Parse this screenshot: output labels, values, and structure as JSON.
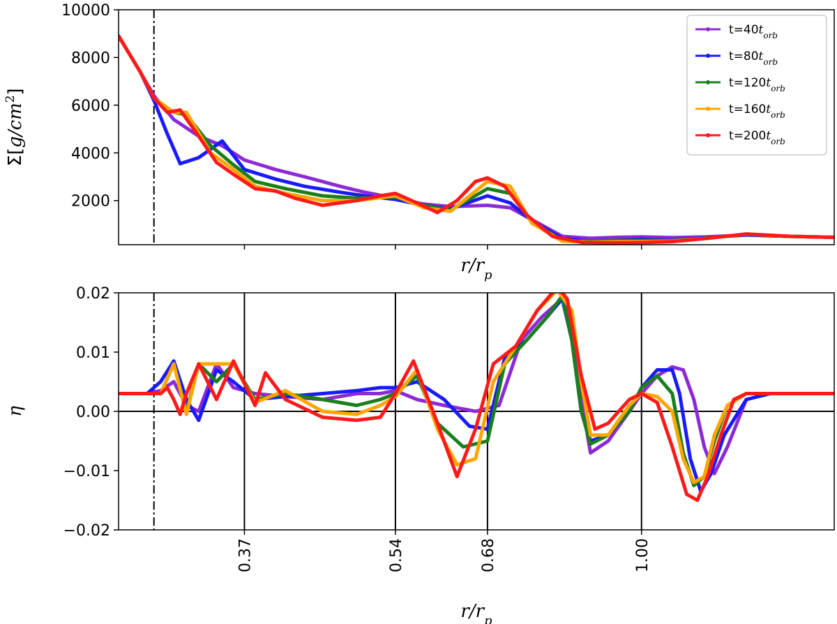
{
  "chart_data": [
    {
      "type": "line",
      "title": "",
      "xlabel": "r/r_p",
      "ylabel": "Σ[g/cm²]",
      "ylabel_parts": {
        "sigma": "Σ[",
        "unit": "g/cm",
        "sup": "2",
        "close": "]"
      },
      "xlabel_parts": {
        "main": "r/r",
        "sub": "p"
      },
      "x_scale": "log",
      "xlim": [
        0.27,
        1.62
      ],
      "ylim": [
        150,
        10000
      ],
      "yticks": [
        2000,
        4000,
        6000,
        8000,
        10000
      ],
      "ytick_labels": [
        "2000",
        "4000",
        "6000",
        "8000",
        "10000"
      ],
      "vertical_marker_dashdot": 0.295,
      "minor_ticks_x": [
        0.37,
        0.54,
        0.68,
        1.0
      ],
      "legend_position": "upper-right",
      "legend_prefix": "t=",
      "legend_unit_main": "t",
      "legend_unit_sub": "orb",
      "series": [
        {
          "name": "t=40t_orb",
          "label_value": "40",
          "color": "#8c2ad6",
          "x": [
            0.27,
            0.285,
            0.295,
            0.31,
            0.33,
            0.35,
            0.37,
            0.4,
            0.43,
            0.47,
            0.5,
            0.54,
            0.58,
            0.62,
            0.68,
            0.72,
            0.76,
            0.82,
            0.88,
            0.94,
            1.0,
            1.08,
            1.18,
            1.3,
            1.45,
            1.62
          ],
          "y": [
            8900,
            7400,
            6400,
            5400,
            4700,
            4300,
            3700,
            3300,
            3000,
            2600,
            2350,
            2100,
            1850,
            1750,
            1800,
            1700,
            1200,
            500,
            420,
            460,
            480,
            450,
            480,
            560,
            500,
            460
          ]
        },
        {
          "name": "t=80t_orb",
          "label_value": "80",
          "color": "#1a1aff",
          "x": [
            0.27,
            0.285,
            0.295,
            0.305,
            0.315,
            0.33,
            0.35,
            0.37,
            0.4,
            0.43,
            0.47,
            0.5,
            0.54,
            0.58,
            0.62,
            0.68,
            0.72,
            0.76,
            0.82,
            0.88,
            0.94,
            1.0,
            1.08,
            1.18,
            1.3,
            1.45,
            1.62
          ],
          "y": [
            8900,
            7400,
            6200,
            4800,
            3550,
            3800,
            4500,
            3300,
            2900,
            2600,
            2350,
            2200,
            2050,
            1800,
            1650,
            2200,
            1900,
            1150,
            420,
            300,
            340,
            380,
            330,
            450,
            560,
            500,
            460
          ]
        },
        {
          "name": "t=120t_orb",
          "label_value": "120",
          "color": "#1a7f1a",
          "x": [
            0.27,
            0.285,
            0.295,
            0.31,
            0.32,
            0.34,
            0.36,
            0.38,
            0.41,
            0.45,
            0.49,
            0.54,
            0.58,
            0.62,
            0.68,
            0.72,
            0.76,
            0.82,
            0.88,
            0.94,
            1.0,
            1.08,
            1.18,
            1.3,
            1.45,
            1.62
          ],
          "y": [
            8900,
            7400,
            6300,
            5700,
            5600,
            4300,
            3500,
            2800,
            2500,
            2200,
            2100,
            2150,
            1800,
            1600,
            2500,
            2300,
            1100,
            330,
            300,
            330,
            330,
            320,
            430,
            580,
            500,
            460
          ]
        },
        {
          "name": "t=160t_orb",
          "label_value": "160",
          "color": "#ffa500",
          "x": [
            0.27,
            0.285,
            0.295,
            0.31,
            0.32,
            0.34,
            0.36,
            0.38,
            0.41,
            0.45,
            0.49,
            0.54,
            0.58,
            0.62,
            0.68,
            0.72,
            0.76,
            0.82,
            0.88,
            0.94,
            1.0,
            1.08,
            1.18,
            1.3,
            1.45,
            1.62
          ],
          "y": [
            8900,
            7400,
            6300,
            5700,
            5700,
            4000,
            3300,
            2600,
            2300,
            2000,
            2000,
            2200,
            1700,
            1550,
            2800,
            2600,
            1050,
            300,
            260,
            280,
            280,
            300,
            420,
            600,
            500,
            460
          ]
        },
        {
          "name": "t=200t_orb",
          "label_value": "200",
          "color": "#ff1a1a",
          "x": [
            0.27,
            0.285,
            0.295,
            0.305,
            0.315,
            0.33,
            0.345,
            0.36,
            0.38,
            0.4,
            0.42,
            0.45,
            0.49,
            0.52,
            0.54,
            0.57,
            0.6,
            0.63,
            0.66,
            0.68,
            0.71,
            0.75,
            0.8,
            0.86,
            0.93,
            1.0,
            1.08,
            1.18,
            1.3,
            1.45,
            1.62
          ],
          "y": [
            8900,
            7400,
            6300,
            5700,
            5800,
            4700,
            3600,
            3100,
            2500,
            2400,
            2100,
            1800,
            2000,
            2200,
            2300,
            1900,
            1500,
            2000,
            2800,
            2950,
            2600,
            1400,
            500,
            250,
            230,
            240,
            280,
            420,
            600,
            500,
            460
          ]
        }
      ]
    },
    {
      "type": "line",
      "title": "",
      "xlabel": "r/r_p",
      "xlabel_parts": {
        "main": "r/r",
        "sub": "p"
      },
      "ylabel": "η",
      "x_scale": "log",
      "xlim": [
        0.27,
        1.62
      ],
      "ylim": [
        -0.02,
        0.02
      ],
      "yticks": [
        -0.02,
        -0.01,
        0.0,
        0.01,
        0.02
      ],
      "ytick_labels": [
        "−0.02",
        "−0.01",
        "0.00",
        "0.01",
        "0.02"
      ],
      "xticks": [
        0.37,
        0.54,
        0.68,
        1.0
      ],
      "xtick_labels": [
        "0.37",
        "0.54",
        "0.68",
        "1.00"
      ],
      "vertical_lines_solid": [
        0.37,
        0.54,
        0.68,
        1.0
      ],
      "vertical_marker_dashdot": 0.295,
      "horizontal_line": 0.0,
      "series": [
        {
          "name": "t=40t_orb",
          "color": "#8c2ad6",
          "x": [
            0.27,
            0.29,
            0.3,
            0.31,
            0.32,
            0.33,
            0.345,
            0.36,
            0.38,
            0.41,
            0.45,
            0.49,
            0.52,
            0.54,
            0.57,
            0.61,
            0.66,
            0.7,
            0.74,
            0.78,
            0.82,
            0.84,
            0.86,
            0.88,
            0.92,
            0.97,
            1.0,
            1.04,
            1.08,
            1.11,
            1.14,
            1.17,
            1.2,
            1.24,
            1.3,
            1.38,
            1.45
          ],
          "y": [
            0.003,
            0.003,
            0.0035,
            0.005,
            0.001,
            0.0,
            0.008,
            0.004,
            0.003,
            0.0025,
            0.002,
            0.003,
            0.003,
            0.0035,
            0.002,
            0.001,
            0.0,
            0.001,
            0.012,
            0.016,
            0.019,
            0.015,
            0.002,
            -0.007,
            -0.005,
            0.0,
            0.003,
            0.006,
            0.0075,
            0.007,
            0.002,
            -0.006,
            -0.0105,
            -0.006,
            0.002,
            0.003,
            0.003
          ]
        },
        {
          "name": "t=80t_orb",
          "color": "#1a1aff",
          "x": [
            0.27,
            0.29,
            0.3,
            0.31,
            0.32,
            0.33,
            0.345,
            0.36,
            0.38,
            0.41,
            0.45,
            0.49,
            0.52,
            0.54,
            0.57,
            0.61,
            0.65,
            0.68,
            0.71,
            0.75,
            0.79,
            0.82,
            0.84,
            0.86,
            0.88,
            0.92,
            0.97,
            1.0,
            1.04,
            1.08,
            1.1,
            1.13,
            1.16,
            1.19,
            1.23,
            1.3,
            1.38,
            1.55
          ],
          "y": [
            0.003,
            0.003,
            0.005,
            0.0085,
            0.002,
            -0.0015,
            0.007,
            0.005,
            0.002,
            0.0025,
            0.003,
            0.0035,
            0.004,
            0.004,
            0.005,
            0.002,
            -0.0025,
            -0.003,
            0.009,
            0.012,
            0.016,
            0.019,
            0.012,
            0.0,
            -0.005,
            -0.004,
            0.0,
            0.004,
            0.007,
            0.007,
            0.003,
            -0.008,
            -0.0135,
            -0.0105,
            -0.004,
            0.002,
            0.003,
            0.003
          ]
        },
        {
          "name": "t=120t_orb",
          "color": "#1a7f1a",
          "x": [
            0.27,
            0.29,
            0.3,
            0.31,
            0.32,
            0.33,
            0.345,
            0.36,
            0.38,
            0.41,
            0.45,
            0.49,
            0.52,
            0.54,
            0.57,
            0.6,
            0.64,
            0.68,
            0.71,
            0.75,
            0.79,
            0.82,
            0.84,
            0.86,
            0.88,
            0.92,
            0.97,
            1.0,
            1.04,
            1.08,
            1.11,
            1.14,
            1.17,
            1.2,
            1.24,
            1.3,
            1.38,
            1.55
          ],
          "y": [
            0.003,
            0.003,
            0.003,
            0.008,
            0.0,
            0.008,
            0.005,
            0.008,
            0.002,
            0.003,
            0.002,
            0.001,
            0.002,
            0.003,
            0.006,
            -0.002,
            -0.006,
            -0.005,
            0.008,
            0.012,
            0.016,
            0.0195,
            0.012,
            0.0,
            -0.0055,
            -0.004,
            0.0,
            0.004,
            0.006,
            0.003,
            -0.007,
            -0.0125,
            -0.011,
            -0.005,
            0.001,
            0.003,
            0.003,
            0.003
          ]
        },
        {
          "name": "t=160t_orb",
          "color": "#ffa500",
          "x": [
            0.27,
            0.29,
            0.3,
            0.31,
            0.32,
            0.33,
            0.345,
            0.36,
            0.38,
            0.41,
            0.45,
            0.49,
            0.52,
            0.54,
            0.57,
            0.6,
            0.63,
            0.66,
            0.69,
            0.73,
            0.77,
            0.81,
            0.84,
            0.86,
            0.88,
            0.92,
            0.97,
            1.0,
            1.04,
            1.08,
            1.11,
            1.14,
            1.17,
            1.2,
            1.24,
            1.3,
            1.38,
            1.55
          ],
          "y": [
            0.003,
            0.003,
            0.003,
            0.008,
            -0.0005,
            0.008,
            0.008,
            0.008,
            0.0015,
            0.0035,
            0.0,
            -0.0005,
            0.001,
            0.0025,
            0.007,
            -0.003,
            -0.009,
            -0.008,
            0.005,
            0.011,
            0.017,
            0.0205,
            0.017,
            0.005,
            -0.004,
            -0.004,
            0.001,
            0.003,
            0.0025,
            0.0,
            -0.008,
            -0.012,
            -0.011,
            -0.004,
            0.001,
            0.003,
            0.003,
            0.003
          ]
        },
        {
          "name": "t=200t_orb",
          "color": "#ff1a1a",
          "x": [
            0.27,
            0.29,
            0.3,
            0.305,
            0.31,
            0.315,
            0.32,
            0.33,
            0.345,
            0.36,
            0.38,
            0.39,
            0.41,
            0.45,
            0.49,
            0.52,
            0.54,
            0.565,
            0.6,
            0.63,
            0.66,
            0.69,
            0.73,
            0.77,
            0.81,
            0.83,
            0.86,
            0.89,
            0.92,
            0.97,
            1.0,
            1.04,
            1.08,
            1.12,
            1.15,
            1.18,
            1.22,
            1.26,
            1.3,
            1.38,
            1.62
          ],
          "y": [
            0.003,
            0.003,
            0.003,
            0.004,
            0.002,
            -0.0005,
            0.003,
            0.008,
            0.002,
            0.0085,
            0.001,
            0.0065,
            0.002,
            -0.001,
            -0.0015,
            -0.001,
            0.003,
            0.0085,
            -0.002,
            -0.011,
            -0.003,
            0.008,
            0.011,
            0.017,
            0.021,
            0.019,
            0.006,
            -0.003,
            -0.002,
            0.002,
            0.003,
            0.0015,
            -0.006,
            -0.014,
            -0.015,
            -0.011,
            -0.004,
            0.002,
            0.003,
            0.003,
            0.003
          ]
        }
      ]
    }
  ]
}
